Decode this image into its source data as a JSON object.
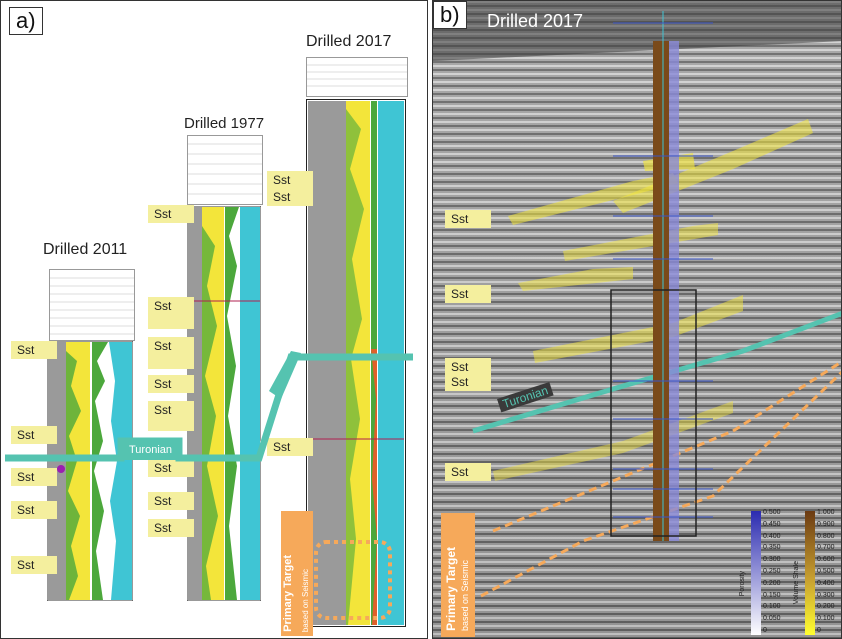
{
  "panel_a": {
    "label": "a)",
    "wells": [
      {
        "title": "Drilled 2011"
      },
      {
        "title": "Drilled 1977"
      },
      {
        "title": "Drilled 2017"
      }
    ],
    "sst_label": "Sst",
    "turonian_label": "Turonian",
    "target_line1": "Primary Target",
    "target_line2": "based on Seismic"
  },
  "panel_b": {
    "label": "b)",
    "title": "Drilled 2017",
    "sst_label": "Sst",
    "turonian_label": "Turonian",
    "target_line1": "Primary Target",
    "target_line2": "based on Seismic",
    "porosity_bar": {
      "label": "Porosity",
      "ticks": [
        "0.500",
        "0.450",
        "0.400",
        "0.350",
        "0.300",
        "0.250",
        "0.200",
        "0.150",
        "0.100",
        "0.050",
        "0"
      ]
    },
    "vshale_bar": {
      "label": "Volume Shale",
      "ticks": [
        "1.000",
        "0.900",
        "0.800",
        "0.700",
        "0.600",
        "0.500",
        "0.400",
        "0.300",
        "0.200",
        "0.100",
        "0"
      ]
    }
  },
  "colors": {
    "sand": "#f4ef9e",
    "turonian": "#55c3b0",
    "target": "#f6a95a",
    "log_cyan": "#3fc5d4",
    "log_yellow": "#f3e53a",
    "log_green": "#4ca83c",
    "log_gray": "#9a9a9a"
  }
}
